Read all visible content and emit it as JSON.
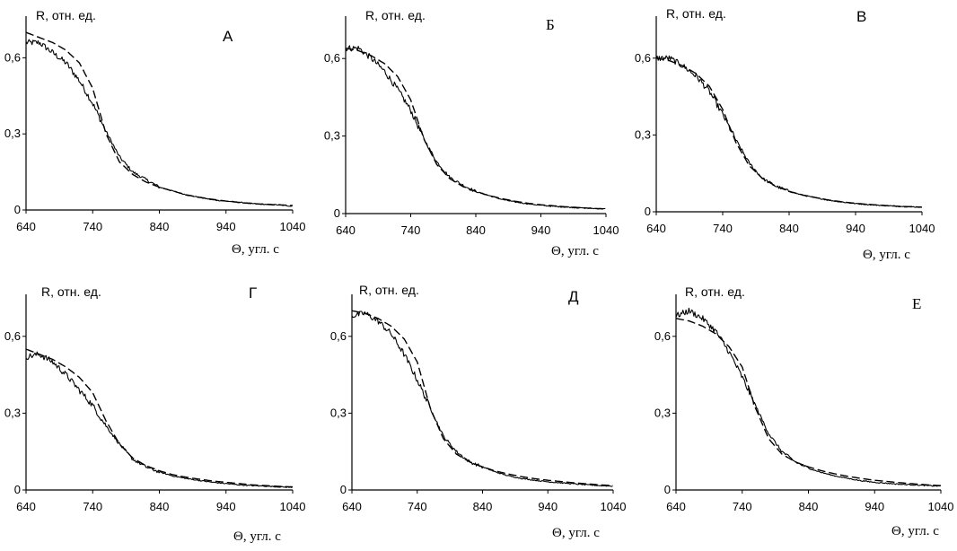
{
  "figure": {
    "ylabel": "R, отн. ед.",
    "xlabel": "Θ, угл. с",
    "x_ticks": [
      "640",
      "740",
      "840",
      "940",
      "1040"
    ],
    "y_ticks": [
      "0",
      "0,3",
      "0,6"
    ]
  },
  "chart_data": [
    {
      "type": "line",
      "panel_label": "А",
      "xlabel": "Θ, угл. с",
      "ylabel": "R, отн. ед.",
      "xlim": [
        640,
        1040
      ],
      "ylim": [
        0,
        0.75
      ],
      "grid": false,
      "series": [
        {
          "style": "solid",
          "x": [
            640,
            660,
            680,
            700,
            720,
            740,
            760,
            780,
            800,
            820,
            840,
            860,
            880,
            900,
            920,
            940,
            960,
            980,
            1000,
            1020,
            1040
          ],
          "y": [
            0.66,
            0.66,
            0.62,
            0.58,
            0.51,
            0.42,
            0.31,
            0.21,
            0.15,
            0.12,
            0.09,
            0.075,
            0.06,
            0.05,
            0.04,
            0.035,
            0.03,
            0.025,
            0.022,
            0.02,
            0.015
          ]
        },
        {
          "style": "dashed",
          "x": [
            640,
            660,
            680,
            700,
            720,
            740,
            760,
            780,
            800,
            820,
            840,
            860,
            880,
            900,
            920,
            940,
            960,
            980,
            1000,
            1020,
            1040
          ],
          "y": [
            0.7,
            0.68,
            0.66,
            0.63,
            0.58,
            0.48,
            0.3,
            0.19,
            0.14,
            0.11,
            0.09,
            0.075,
            0.06,
            0.05,
            0.042,
            0.035,
            0.03,
            0.025,
            0.022,
            0.02,
            0.018
          ]
        }
      ]
    },
    {
      "type": "line",
      "panel_label": "Б",
      "xlabel": "Θ, угл. с",
      "ylabel": "R, отн. ед.",
      "xlim": [
        640,
        1040
      ],
      "ylim": [
        0,
        0.75
      ],
      "grid": false,
      "series": [
        {
          "style": "solid",
          "x": [
            640,
            660,
            680,
            700,
            720,
            740,
            760,
            780,
            800,
            820,
            840,
            860,
            880,
            900,
            920,
            940,
            960,
            980,
            1000,
            1020,
            1040
          ],
          "y": [
            0.64,
            0.64,
            0.6,
            0.55,
            0.48,
            0.4,
            0.29,
            0.2,
            0.14,
            0.11,
            0.085,
            0.07,
            0.055,
            0.045,
            0.038,
            0.032,
            0.028,
            0.025,
            0.022,
            0.02,
            0.018
          ]
        },
        {
          "style": "dashed",
          "x": [
            640,
            660,
            680,
            700,
            720,
            740,
            760,
            780,
            800,
            820,
            840,
            860,
            880,
            900,
            920,
            940,
            960,
            980,
            1000,
            1020,
            1040
          ],
          "y": [
            0.64,
            0.63,
            0.61,
            0.58,
            0.53,
            0.44,
            0.29,
            0.19,
            0.135,
            0.105,
            0.085,
            0.07,
            0.058,
            0.048,
            0.04,
            0.034,
            0.03,
            0.026,
            0.023,
            0.02,
            0.018
          ]
        }
      ]
    },
    {
      "type": "line",
      "panel_label": "В",
      "xlabel": "Θ, угл. с",
      "ylabel": "R, отн. ед.",
      "xlim": [
        640,
        1040
      ],
      "ylim": [
        0,
        0.75
      ],
      "grid": false,
      "series": [
        {
          "style": "solid",
          "x": [
            640,
            660,
            680,
            700,
            720,
            740,
            760,
            780,
            800,
            820,
            840,
            860,
            880,
            900,
            920,
            940,
            960,
            980,
            1000,
            1020,
            1040
          ],
          "y": [
            0.6,
            0.6,
            0.57,
            0.53,
            0.47,
            0.38,
            0.28,
            0.19,
            0.13,
            0.1,
            0.08,
            0.065,
            0.055,
            0.045,
            0.038,
            0.032,
            0.028,
            0.025,
            0.022,
            0.02,
            0.018
          ]
        },
        {
          "style": "dashed",
          "x": [
            640,
            660,
            680,
            700,
            720,
            740,
            760,
            780,
            800,
            820,
            840,
            860,
            880,
            900,
            920,
            940,
            960,
            980,
            1000,
            1020,
            1040
          ],
          "y": [
            0.6,
            0.59,
            0.57,
            0.54,
            0.49,
            0.4,
            0.27,
            0.18,
            0.13,
            0.1,
            0.08,
            0.066,
            0.055,
            0.046,
            0.039,
            0.033,
            0.029,
            0.025,
            0.022,
            0.02,
            0.018
          ]
        }
      ]
    },
    {
      "type": "line",
      "panel_label": "Г",
      "xlabel": "Θ, угл. с",
      "ylabel": "R, отн. ед.",
      "xlim": [
        640,
        1040
      ],
      "ylim": [
        0,
        0.75
      ],
      "grid": false,
      "series": [
        {
          "style": "solid",
          "x": [
            640,
            660,
            680,
            700,
            720,
            740,
            760,
            780,
            800,
            820,
            840,
            860,
            880,
            900,
            920,
            940,
            960,
            980,
            1000,
            1020,
            1040
          ],
          "y": [
            0.52,
            0.53,
            0.5,
            0.45,
            0.39,
            0.33,
            0.25,
            0.18,
            0.12,
            0.09,
            0.07,
            0.055,
            0.045,
            0.037,
            0.03,
            0.025,
            0.02,
            0.017,
            0.015,
            0.012,
            0.01
          ]
        },
        {
          "style": "dashed",
          "x": [
            640,
            660,
            680,
            700,
            720,
            740,
            760,
            780,
            800,
            820,
            840,
            860,
            880,
            900,
            920,
            940,
            960,
            980,
            1000,
            1020,
            1040
          ],
          "y": [
            0.55,
            0.53,
            0.51,
            0.48,
            0.44,
            0.38,
            0.27,
            0.18,
            0.125,
            0.095,
            0.075,
            0.06,
            0.05,
            0.042,
            0.035,
            0.03,
            0.025,
            0.02,
            0.017,
            0.014,
            0.012
          ]
        }
      ]
    },
    {
      "type": "line",
      "panel_label": "Д",
      "xlabel": "Θ, угл. с",
      "ylabel": "R, отн. ед.",
      "xlim": [
        640,
        1040
      ],
      "ylim": [
        0,
        0.75
      ],
      "grid": false,
      "series": [
        {
          "style": "solid",
          "x": [
            640,
            660,
            680,
            700,
            720,
            740,
            760,
            780,
            800,
            820,
            840,
            860,
            880,
            900,
            920,
            940,
            960,
            980,
            1000,
            1020,
            1040
          ],
          "y": [
            0.68,
            0.69,
            0.66,
            0.61,
            0.53,
            0.43,
            0.32,
            0.21,
            0.15,
            0.11,
            0.09,
            0.07,
            0.055,
            0.045,
            0.038,
            0.032,
            0.028,
            0.024,
            0.02,
            0.017,
            0.015
          ]
        },
        {
          "style": "dashed",
          "x": [
            640,
            660,
            680,
            700,
            720,
            740,
            760,
            780,
            800,
            820,
            840,
            860,
            880,
            900,
            920,
            940,
            960,
            980,
            1000,
            1020,
            1040
          ],
          "y": [
            0.7,
            0.69,
            0.67,
            0.64,
            0.59,
            0.5,
            0.32,
            0.2,
            0.14,
            0.11,
            0.09,
            0.074,
            0.062,
            0.052,
            0.044,
            0.038,
            0.033,
            0.028,
            0.024,
            0.02,
            0.017
          ]
        }
      ]
    },
    {
      "type": "line",
      "panel_label": "Е",
      "xlabel": "Θ, угл. с",
      "ylabel": "R, отн. ед.",
      "xlim": [
        640,
        1040
      ],
      "ylim": [
        0,
        0.75
      ],
      "grid": false,
      "series": [
        {
          "style": "solid",
          "x": [
            640,
            660,
            680,
            700,
            720,
            740,
            760,
            780,
            800,
            820,
            840,
            860,
            880,
            900,
            920,
            940,
            960,
            980,
            1000,
            1020,
            1040
          ],
          "y": [
            0.68,
            0.7,
            0.67,
            0.62,
            0.54,
            0.44,
            0.33,
            0.22,
            0.15,
            0.11,
            0.085,
            0.068,
            0.055,
            0.045,
            0.036,
            0.03,
            0.026,
            0.022,
            0.02,
            0.017,
            0.015
          ]
        },
        {
          "style": "dashed",
          "x": [
            640,
            660,
            680,
            700,
            720,
            740,
            760,
            780,
            800,
            820,
            840,
            860,
            880,
            900,
            920,
            940,
            960,
            980,
            1000,
            1020,
            1040
          ],
          "y": [
            0.67,
            0.66,
            0.64,
            0.61,
            0.56,
            0.48,
            0.32,
            0.2,
            0.14,
            0.11,
            0.09,
            0.075,
            0.063,
            0.053,
            0.045,
            0.038,
            0.033,
            0.028,
            0.024,
            0.02,
            0.017
          ]
        }
      ]
    }
  ]
}
